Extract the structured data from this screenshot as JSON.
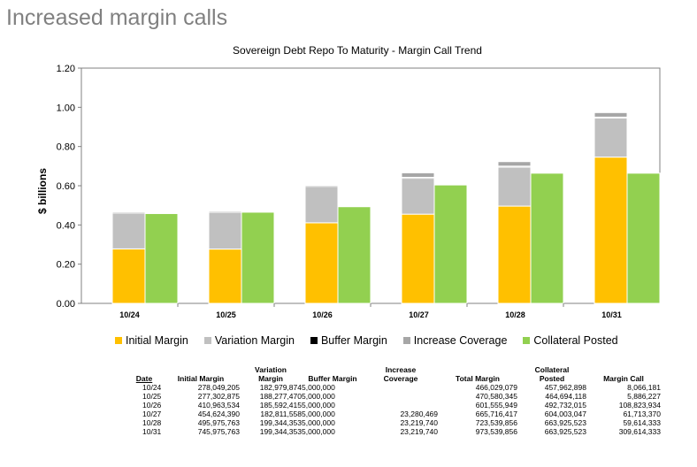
{
  "slide": {
    "title": "Increased margin calls"
  },
  "colors": {
    "initial_margin": "#FFC000",
    "variation_margin": "#C0C0C0",
    "buffer_margin": "#000000",
    "increase_coverage": "#A6A6A6",
    "collateral_posted": "#92D050",
    "slide_title": "#808080"
  },
  "chart_data": {
    "type": "bar",
    "title": "Sovereign Debt Repo To Maturity - Margin Call Trend",
    "ylabel": "$ billions",
    "xlabel": "",
    "ylim": [
      0,
      1.2
    ],
    "yticks": [
      "0.00",
      "0.20",
      "0.40",
      "0.60",
      "0.80",
      "1.00",
      "1.20"
    ],
    "categories": [
      "10/24",
      "10/25",
      "10/26",
      "10/27",
      "10/28",
      "10/31"
    ],
    "stacked_series": [
      {
        "name": "Initial Margin",
        "values": [
          0.278,
          0.277,
          0.411,
          0.455,
          0.496,
          0.746
        ]
      },
      {
        "name": "Variation Margin",
        "values": [
          0.183,
          0.188,
          0.186,
          0.183,
          0.199,
          0.199
        ]
      },
      {
        "name": "Buffer Margin",
        "values": [
          0.005,
          0.005,
          0.005,
          0.005,
          0.005,
          0.005
        ]
      },
      {
        "name": "Increase Coverage",
        "values": [
          0,
          0,
          0,
          0.023,
          0.023,
          0.023
        ]
      }
    ],
    "side_series": [
      {
        "name": "Collateral Posted",
        "values": [
          0.458,
          0.465,
          0.493,
          0.604,
          0.664,
          0.664
        ]
      }
    ],
    "legend": "bottom",
    "grid": false
  },
  "legend": [
    {
      "label": "Initial Margin"
    },
    {
      "label": "Variation Margin"
    },
    {
      "label": "Buffer Margin"
    },
    {
      "label": "Increase Coverage"
    },
    {
      "label": "Collateral Posted"
    }
  ],
  "table": {
    "headers": [
      "Date",
      "Initial Margin",
      "Variation Margin",
      "Buffer Margin",
      "Increase Coverage",
      "Total Margin",
      "Collateral Posted",
      "Margin Call"
    ],
    "rows": [
      [
        "10/24",
        "278,049,205",
        "182,979,874",
        "5,000,000",
        "",
        "466,029,079",
        "457,962,898",
        "8,066,181"
      ],
      [
        "10/25",
        "277,302,875",
        "188,277,470",
        "5,000,000",
        "",
        "470,580,345",
        "464,694,118",
        "5,886,227"
      ],
      [
        "10/26",
        "410,963,534",
        "185,592,415",
        "5,000,000",
        "",
        "601,555,949",
        "492,732,015",
        "108,823,934"
      ],
      [
        "10/27",
        "454,624,390",
        "182,811,558",
        "5,000,000",
        "23,280,469",
        "665,716,417",
        "604,003,047",
        "61,713,370"
      ],
      [
        "10/28",
        "495,975,763",
        "199,344,353",
        "5,000,000",
        "23,219,740",
        "723,539,856",
        "663,925,523",
        "59,614,333"
      ],
      [
        "10/31",
        "745,975,763",
        "199,344,353",
        "5,000,000",
        "23,219,740",
        "973,539,856",
        "663,925,523",
        "309,614,333"
      ]
    ]
  }
}
